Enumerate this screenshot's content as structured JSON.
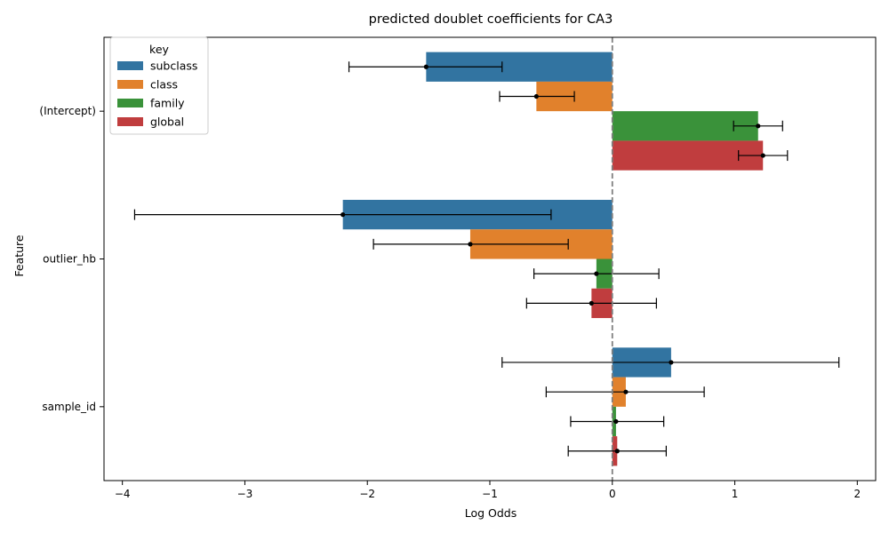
{
  "chart_data": {
    "type": "bar",
    "orientation": "horizontal",
    "title": "predicted doublet coefficients for CA3",
    "xlabel": "Log Odds",
    "ylabel": "Feature",
    "xlim": [
      -4.15,
      2.15
    ],
    "xticks": [
      -4,
      -3,
      -2,
      -1,
      0,
      1,
      2
    ],
    "xtick_labels": [
      "−4",
      "−3",
      "−2",
      "−1",
      "0",
      "1",
      "2"
    ],
    "categories": [
      "(Intercept)",
      "outlier_hb",
      "sample_id"
    ],
    "reference_line": {
      "x": 0,
      "style": "dashed",
      "color": "#808080"
    },
    "legend": {
      "title": "key",
      "position": "top-left"
    },
    "series": [
      {
        "name": "subclass",
        "color": "#3274a1",
        "values": [
          -1.52,
          -2.2,
          0.48
        ],
        "ci_low": [
          -2.15,
          -3.9,
          -0.9
        ],
        "ci_high": [
          -0.9,
          -0.5,
          1.85
        ]
      },
      {
        "name": "class",
        "color": "#e1812c",
        "values": [
          -0.62,
          -1.16,
          0.11
        ],
        "ci_low": [
          -0.92,
          -1.95,
          -0.54
        ],
        "ci_high": [
          -0.31,
          -0.36,
          0.75
        ]
      },
      {
        "name": "family",
        "color": "#3a923a",
        "values": [
          1.19,
          -0.13,
          0.03
        ],
        "ci_low": [
          0.99,
          -0.64,
          -0.34
        ],
        "ci_high": [
          1.39,
          0.38,
          0.42
        ]
      },
      {
        "name": "global",
        "color": "#c03d3e",
        "values": [
          1.23,
          -0.17,
          0.04
        ],
        "ci_low": [
          1.03,
          -0.7,
          -0.36
        ],
        "ci_high": [
          1.43,
          0.36,
          0.44
        ]
      }
    ]
  }
}
